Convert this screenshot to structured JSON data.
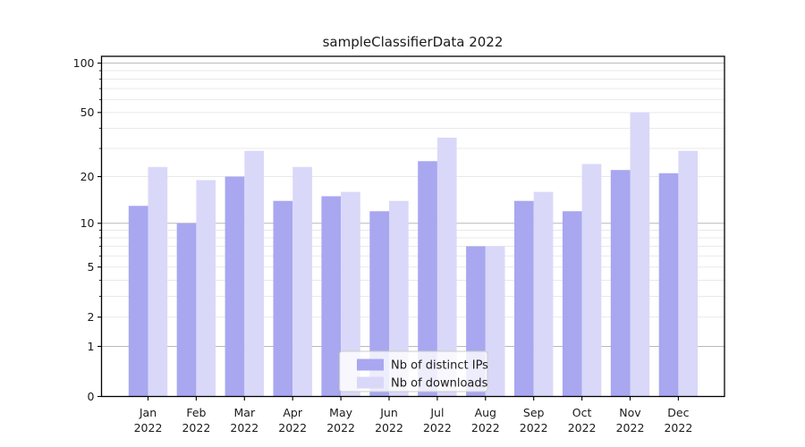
{
  "chart_data": {
    "type": "bar",
    "title": "sampleClassifierData 2022",
    "categories": [
      "Jan",
      "Feb",
      "Mar",
      "Apr",
      "May",
      "Jun",
      "Jul",
      "Aug",
      "Sep",
      "Oct",
      "Nov",
      "Dec"
    ],
    "category_year": "2022",
    "series": [
      {
        "name": "Nb of distinct IPs",
        "color": "#a8a7f0",
        "values": [
          13,
          10,
          20,
          14,
          15,
          12,
          25,
          7,
          14,
          12,
          22,
          21
        ]
      },
      {
        "name": "Nb of downloads",
        "color": "#d9d8f9",
        "values": [
          23,
          19,
          29,
          23,
          16,
          14,
          35,
          7,
          16,
          24,
          50,
          29
        ]
      }
    ],
    "yscale": "log1p",
    "ylim": [
      0,
      110
    ],
    "ytick_labeled": [
      0,
      1,
      2,
      5,
      10,
      20,
      50,
      100
    ],
    "ytick_major": [
      1,
      10,
      100
    ],
    "ytick_minor": [
      3,
      4,
      6,
      7,
      8,
      9,
      30,
      40,
      60,
      70,
      80,
      90
    ],
    "grid": {
      "major_color": "#b8b8b8",
      "minor_color": "#e9e9e9"
    },
    "legend": {
      "position": "lower center"
    },
    "axis_color": "#000000",
    "background": "#ffffff"
  }
}
